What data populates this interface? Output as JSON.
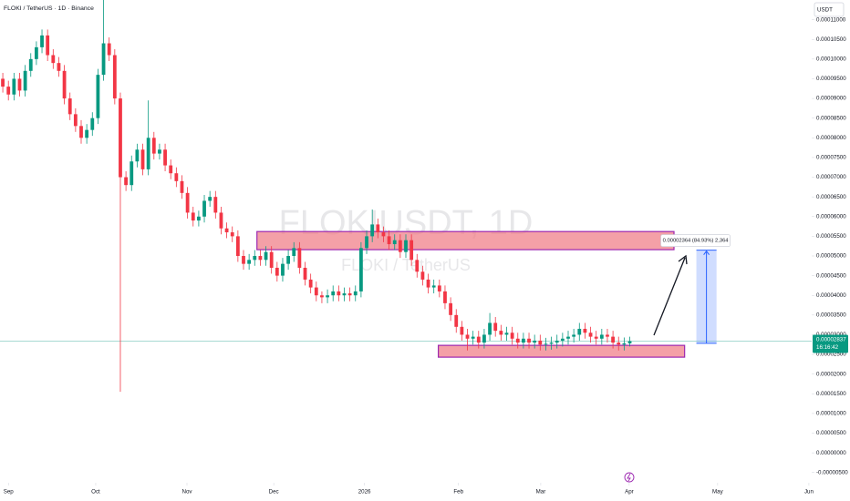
{
  "chart_data": {
    "type": "candlestick",
    "title": "FLOKI / TetherUS · 1D · Binance",
    "watermark": "FLOKIUSDT, 1D",
    "watermark_subtitle": "FLOKI / TetherUS",
    "currency": "USDT",
    "up_color": "#089981",
    "down_color": "#f23645",
    "open": [
      9.5e-05,
      9.3e-05,
      9.1e-05,
      9.5e-05,
      9.2e-05,
      9.7e-05,
      0.0001,
      0.000103,
      0.000106,
      0.000101,
      9.9e-05,
      9.7e-05,
      9e-05,
      8.6e-05,
      8.3e-05,
      8e-05,
      8.2e-05,
      8.5e-05,
      9.6e-05,
      0.000104,
      0.000101,
      9e-05,
      7e-05,
      6.8e-05,
      7.4e-05,
      7.7e-05,
      7.2e-05,
      8e-05,
      7.6e-05,
      7.7e-05,
      7.3e-05,
      7.1e-05,
      6.9e-05,
      6.6e-05,
      6.1e-05,
      5.9e-05,
      6e-05,
      6.4e-05,
      6.5e-05,
      6.1e-05,
      5.7e-05,
      5.6e-05,
      5.5e-05,
      5e-05,
      4.8e-05,
      4.9e-05,
      5e-05,
      4.9e-05,
      5.1e-05,
      4.7e-05,
      4.5e-05,
      4.8e-05,
      5e-05,
      5.2e-05,
      4.7e-05,
      4.4e-05,
      4.2e-05,
      4e-05,
      3.95e-05,
      4e-05,
      4.1e-05,
      4e-05,
      4.05e-05,
      4e-05,
      4.1e-05,
      5.2e-05,
      5.5e-05,
      5.8e-05,
      5.6e-05,
      5.5e-05,
      5.3e-05,
      5.4e-05,
      5.1e-05,
      5.4e-05,
      4.9e-05,
      4.6e-05,
      4.4e-05,
      4.2e-05,
      4.25e-05,
      4.1e-05,
      3.8e-05,
      3.5e-05,
      3.2e-05,
      3e-05,
      2.9e-05,
      2.95e-05,
      2.8e-05,
      3e-05,
      3.3e-05,
      3.1e-05,
      3e-05,
      3.05e-05,
      2.9e-05,
      2.8e-05,
      2.9e-05,
      2.8e-05,
      2.85e-05,
      2.75e-05,
      2.77e-05,
      2.8e-05,
      2.85e-05,
      2.9e-05,
      2.95e-05,
      3e-05,
      3.15e-05,
      3.05e-05,
      2.95e-05,
      2.9e-05,
      3e-05,
      2.95e-05,
      2.8e-05,
      2.75e-05,
      2.78e-05
    ],
    "high": [
      9.65e-05,
      9.45e-05,
      9.65e-05,
      9.65e-05,
      9.85e-05,
      0.0001015,
      0.0001045,
      0.0001075,
      0.0001075,
      0.0001025,
      0.0001005,
      9.85e-05,
      9.15e-05,
      8.75e-05,
      8.45e-05,
      8.35e-05,
      8.65e-05,
      9.75e-05,
      0.000115,
      0.0001055,
      0.0001025,
      9.15e-05,
      7.15e-05,
      7.55e-05,
      7.85e-05,
      7.85e-05,
      8.95e-05,
      8.15e-05,
      7.85e-05,
      7.85e-05,
      7.45e-05,
      7.25e-05,
      7.05e-05,
      6.75e-05,
      6.25e-05,
      6.15e-05,
      6.55e-05,
      6.65e-05,
      6.65e-05,
      6.25e-05,
      5.85e-05,
      5.75e-05,
      5.65e-05,
      5.15e-05,
      5.05e-05,
      5.15e-05,
      5.15e-05,
      5.25e-05,
      5.25e-05,
      4.85e-05,
      4.95e-05,
      5.15e-05,
      5.35e-05,
      5.35e-05,
      4.85e-05,
      4.55e-05,
      4.35e-05,
      4.1e-05,
      4.15e-05,
      4.25e-05,
      4.25e-05,
      4.2e-05,
      4.2e-05,
      4.25e-05,
      5.35e-05,
      5.65e-05,
      6.18e-05,
      5.95e-05,
      5.75e-05,
      5.65e-05,
      5.55e-05,
      5.55e-05,
      5.55e-05,
      5.55e-05,
      5.05e-05,
      4.75e-05,
      4.55e-05,
      4.4e-05,
      4.4e-05,
      4.25e-05,
      3.95e-05,
      3.65e-05,
      3.35e-05,
      3.15e-05,
      3.1e-05,
      3.1e-05,
      3.15e-05,
      3.55e-05,
      3.45e-05,
      3.25e-05,
      3.2e-05,
      3.2e-05,
      3.05e-05,
      3.05e-05,
      3.05e-05,
      3e-05,
      3e-05,
      2.92e-05,
      2.95e-05,
      3e-05,
      3.05e-05,
      3.1e-05,
      3.15e-05,
      3.3e-05,
      3.3e-05,
      3.2e-05,
      3.1e-05,
      3.15e-05,
      3.15e-05,
      3.1e-05,
      2.95e-05,
      2.93e-05,
      2.95e-05
    ],
    "low": [
      9.15e-05,
      8.95e-05,
      8.95e-05,
      9.05e-05,
      9.05e-05,
      9.55e-05,
      9.85e-05,
      0.0001015,
      9.95e-05,
      9.75e-05,
      9.55e-05,
      8.85e-05,
      8.45e-05,
      8.15e-05,
      7.85e-05,
      7.85e-05,
      8.05e-05,
      8.35e-05,
      9.45e-05,
      9.95e-05,
      8.85e-05,
      1.55e-05,
      6.65e-05,
      6.65e-05,
      7.25e-05,
      7.05e-05,
      7.05e-05,
      7.45e-05,
      7.45e-05,
      7.15e-05,
      6.95e-05,
      6.75e-05,
      6.45e-05,
      5.95e-05,
      5.75e-05,
      5.75e-05,
      5.85e-05,
      6.25e-05,
      5.95e-05,
      5.55e-05,
      5.45e-05,
      5.35e-05,
      4.85e-05,
      4.65e-05,
      4.65e-05,
      4.75e-05,
      4.75e-05,
      4.75e-05,
      4.55e-05,
      4.35e-05,
      4.35e-05,
      4.65e-05,
      4.85e-05,
      4.55e-05,
      4.25e-05,
      4.05e-05,
      3.85e-05,
      3.8e-05,
      3.8e-05,
      3.85e-05,
      3.85e-05,
      3.85e-05,
      3.85e-05,
      3.85e-05,
      3.95e-05,
      5.05e-05,
      5.35e-05,
      5.45e-05,
      5.35e-05,
      5.15e-05,
      5.15e-05,
      4.95e-05,
      4.95e-05,
      4.75e-05,
      4.45e-05,
      4.25e-05,
      4.05e-05,
      4.05e-05,
      3.95e-05,
      3.65e-05,
      3.35e-05,
      3.05e-05,
      2.85e-05,
      2.6e-05,
      2.75e-05,
      2.65e-05,
      2.65e-05,
      2.85e-05,
      2.95e-05,
      2.85e-05,
      2.85e-05,
      2.75e-05,
      2.65e-05,
      2.65e-05,
      2.65e-05,
      2.65e-05,
      2.6e-05,
      2.6e-05,
      2.62e-05,
      2.65e-05,
      2.7e-05,
      2.75e-05,
      2.8e-05,
      2.85e-05,
      2.9e-05,
      2.8e-05,
      2.75e-05,
      2.75e-05,
      2.8e-05,
      2.65e-05,
      2.6e-05,
      2.6e-05,
      2.7e-05
    ],
    "close": [
      9.3e-05,
      9.1e-05,
      9.5e-05,
      9.2e-05,
      9.7e-05,
      0.0001,
      0.000103,
      0.000106,
      0.000101,
      9.9e-05,
      9.7e-05,
      9e-05,
      8.6e-05,
      8.3e-05,
      8e-05,
      8.2e-05,
      8.5e-05,
      9.6e-05,
      0.000104,
      0.000101,
      9e-05,
      7e-05,
      6.8e-05,
      7.4e-05,
      7.7e-05,
      7.2e-05,
      8e-05,
      7.6e-05,
      7.7e-05,
      7.3e-05,
      7.1e-05,
      6.9e-05,
      6.6e-05,
      6.1e-05,
      5.9e-05,
      6e-05,
      6.4e-05,
      6.5e-05,
      6.1e-05,
      5.7e-05,
      5.6e-05,
      5.5e-05,
      5e-05,
      4.8e-05,
      4.9e-05,
      5e-05,
      4.9e-05,
      5.1e-05,
      4.7e-05,
      4.5e-05,
      4.8e-05,
      5e-05,
      5.2e-05,
      4.7e-05,
      4.4e-05,
      4.2e-05,
      4e-05,
      3.95e-05,
      4e-05,
      4.1e-05,
      4e-05,
      4.05e-05,
      4e-05,
      4.1e-05,
      5.2e-05,
      5.5e-05,
      5.8e-05,
      5.6e-05,
      5.5e-05,
      5.3e-05,
      5.4e-05,
      5.1e-05,
      5.4e-05,
      4.9e-05,
      4.6e-05,
      4.4e-05,
      4.2e-05,
      4.25e-05,
      4.1e-05,
      3.8e-05,
      3.5e-05,
      3.2e-05,
      3e-05,
      2.9e-05,
      2.95e-05,
      2.8e-05,
      3e-05,
      3.3e-05,
      3.1e-05,
      3e-05,
      3.05e-05,
      2.9e-05,
      2.8e-05,
      2.9e-05,
      2.8e-05,
      2.85e-05,
      2.75e-05,
      2.77e-05,
      2.8e-05,
      2.85e-05,
      2.9e-05,
      2.95e-05,
      3e-05,
      3.15e-05,
      3.05e-05,
      2.95e-05,
      2.9e-05,
      3e-05,
      2.95e-05,
      2.8e-05,
      2.75e-05,
      2.78e-05,
      2.837e-05
    ],
    "xlim": [
      -0.5,
      144.5
    ],
    "xticks": [
      {
        "value": 1,
        "label": "Sep"
      },
      {
        "value": 16.6,
        "label": "Oct"
      },
      {
        "value": 32.9,
        "label": "Nov"
      },
      {
        "value": 48.4,
        "label": "Dec"
      },
      {
        "value": 64.6,
        "label": "2026"
      },
      {
        "value": 81.4,
        "label": "Feb"
      },
      {
        "value": 96.1,
        "label": "Mar"
      },
      {
        "value": 111.9,
        "label": "Apr"
      },
      {
        "value": 127.7,
        "label": "May"
      },
      {
        "value": 144,
        "label": "Jun"
      }
    ],
    "ylim": [
      -7.6e-06,
      0.000115
    ],
    "yticks": [
      {
        "value": -5e-06,
        "label": "-0.00000500"
      },
      {
        "value": 0,
        "label": "0.00000000"
      },
      {
        "value": 5e-06,
        "label": "0.00000500"
      },
      {
        "value": 1e-05,
        "label": "0.00001000"
      },
      {
        "value": 1.5e-05,
        "label": "0.00001500"
      },
      {
        "value": 2e-05,
        "label": "0.00002000"
      },
      {
        "value": 2.5e-05,
        "label": "0.00002500"
      },
      {
        "value": 3e-05,
        "label": "0.00003000"
      },
      {
        "value": 3.5e-05,
        "label": "0.00003500"
      },
      {
        "value": 4e-05,
        "label": "0.00004000"
      },
      {
        "value": 4.5e-05,
        "label": "0.00004500"
      },
      {
        "value": 5e-05,
        "label": "0.00005000"
      },
      {
        "value": 5.5e-05,
        "label": "0.00005500"
      },
      {
        "value": 6e-05,
        "label": "0.00006000"
      },
      {
        "value": 6.5e-05,
        "label": "0.00006500"
      },
      {
        "value": 7e-05,
        "label": "0.00007000"
      },
      {
        "value": 7.5e-05,
        "label": "0.00007500"
      },
      {
        "value": 8e-05,
        "label": "0.00008000"
      },
      {
        "value": 8.5e-05,
        "label": "0.00008500"
      },
      {
        "value": 9e-05,
        "label": "0.00009000"
      },
      {
        "value": 9.5e-05,
        "label": "0.00009500"
      },
      {
        "value": 0.0001,
        "label": "0.00010000"
      },
      {
        "value": 0.000105,
        "label": "0.00010500"
      },
      {
        "value": 0.00011,
        "label": "0.00011000"
      }
    ],
    "last_price": {
      "value": 2.837e-05,
      "label": "0.00002837"
    },
    "countdown": "16:16:42",
    "zones": [
      {
        "ylim": [
          5.16e-05,
          5.62e-05
        ],
        "xlim": [
          45.4,
          119.9
        ]
      },
      {
        "ylim": [
          2.43e-05,
          2.73e-05
        ],
        "xlim": [
          77.8,
          121.8
        ]
      }
    ],
    "zone_color": "#ef7882",
    "zone_border": "#9c27b0",
    "measure": {
      "from": 2.783e-05,
      "to": 5.147e-05,
      "xlim": [
        123.9,
        127.5
      ],
      "label": "0.00002364 (84.93%) 2,364",
      "color": "#2962ff"
    }
  }
}
